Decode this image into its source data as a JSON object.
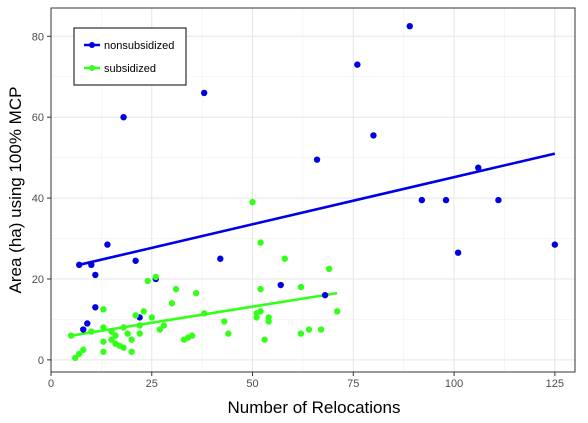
{
  "chart_data": {
    "type": "scatter",
    "title": "",
    "xlabel": "Number of Relocations",
    "ylabel": "Area (ha) using 100% MCP",
    "xlim": [
      0,
      130
    ],
    "ylim": [
      -3,
      87
    ],
    "x_ticks": [
      0,
      25,
      50,
      75,
      100,
      125
    ],
    "y_ticks": [
      0,
      20,
      40,
      60,
      80
    ],
    "grid": true,
    "legend_position": "top-left",
    "series": [
      {
        "name": "nonsubsidized",
        "color": "#0000e6",
        "points": [
          [
            7,
            23.5
          ],
          [
            8,
            7.5
          ],
          [
            9,
            9
          ],
          [
            10,
            23.5
          ],
          [
            11,
            21
          ],
          [
            11,
            13
          ],
          [
            14,
            28.5
          ],
          [
            18,
            60
          ],
          [
            21,
            24.5
          ],
          [
            22,
            10.5
          ],
          [
            26,
            20
          ],
          [
            38,
            66
          ],
          [
            42,
            25
          ],
          [
            57,
            18.5
          ],
          [
            66,
            49.5
          ],
          [
            68,
            16
          ],
          [
            76,
            73
          ],
          [
            80,
            55.5
          ],
          [
            89,
            82.5
          ],
          [
            92,
            39.5
          ],
          [
            98,
            39.5
          ],
          [
            101,
            26.5
          ],
          [
            106,
            47.5
          ],
          [
            111,
            39.5
          ],
          [
            125,
            28.5
          ]
        ],
        "trend": [
          [
            7,
            23.5
          ],
          [
            125,
            51
          ]
        ]
      },
      {
        "name": "subsidized",
        "color": "#33ff1a",
        "points": [
          [
            5,
            6
          ],
          [
            6,
            0.5
          ],
          [
            7,
            1.5
          ],
          [
            8,
            2.5
          ],
          [
            10,
            7
          ],
          [
            13,
            12.5
          ],
          [
            13,
            8
          ],
          [
            13,
            4.5
          ],
          [
            13,
            2
          ],
          [
            15,
            7
          ],
          [
            15,
            5
          ],
          [
            16,
            6
          ],
          [
            16,
            4
          ],
          [
            17,
            3.5
          ],
          [
            18,
            8
          ],
          [
            18,
            3
          ],
          [
            19,
            6.5
          ],
          [
            20,
            5
          ],
          [
            20,
            2
          ],
          [
            21,
            11
          ],
          [
            22,
            8.5
          ],
          [
            22,
            6.5
          ],
          [
            23,
            12
          ],
          [
            24,
            19.5
          ],
          [
            25,
            10.5
          ],
          [
            26,
            20.5
          ],
          [
            27,
            7.5
          ],
          [
            28,
            8.5
          ],
          [
            30,
            14
          ],
          [
            31,
            17.5
          ],
          [
            33,
            5
          ],
          [
            34,
            5.5
          ],
          [
            35,
            6
          ],
          [
            36,
            16.5
          ],
          [
            38,
            11.5
          ],
          [
            43,
            9.5
          ],
          [
            44,
            6.5
          ],
          [
            50,
            39
          ],
          [
            51,
            11.5
          ],
          [
            51,
            10.5
          ],
          [
            52,
            29
          ],
          [
            52,
            17.5
          ],
          [
            52,
            12
          ],
          [
            53,
            5
          ],
          [
            54,
            10.5
          ],
          [
            54,
            9.5
          ],
          [
            58,
            25
          ],
          [
            62,
            18
          ],
          [
            62,
            6.5
          ],
          [
            64,
            7.5
          ],
          [
            67,
            7.5
          ],
          [
            69,
            22.5
          ],
          [
            71,
            12
          ]
        ],
        "trend": [
          [
            5,
            6
          ],
          [
            71,
            16.5
          ]
        ]
      }
    ]
  }
}
